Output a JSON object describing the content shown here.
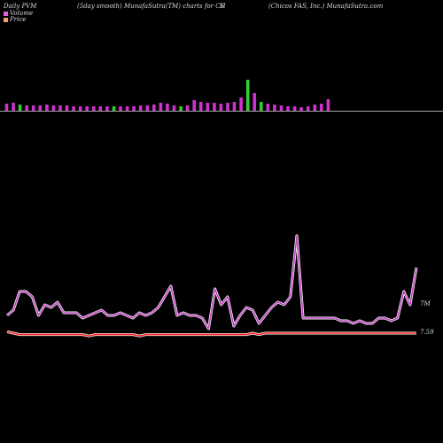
{
  "header": {
    "left": "Daily PVM",
    "center": "(5day smooth) MunafaSutra(TM) charts for CH",
    "symbol_suffix": "S",
    "right": "(Chicos FAS, Inc.) MunafaSutra.com"
  },
  "legend": [
    {
      "label": "Volume",
      "color": "#e060e0"
    },
    {
      "label": "Price",
      "color": "#f0a070"
    }
  ],
  "colors": {
    "background": "#000000",
    "volume_up": "#cc33cc",
    "volume_down": "#33cc33",
    "baseline": "#a0a0a0",
    "volume_line": "#c040c0",
    "volume_line_glow": "#ffffff",
    "price_line": "#ff2020",
    "price_line_glow": "#ffffff"
  },
  "chart_data": {
    "type": "line",
    "title": "Daily PVM",
    "end_labels": {
      "volume": "7M",
      "price": "7.59"
    },
    "volume_bars": {
      "heights": [
        8,
        9,
        7,
        6,
        6,
        6,
        7,
        6,
        6,
        6,
        5,
        5,
        5,
        5,
        5,
        5,
        5,
        5,
        5,
        5,
        6,
        6,
        7,
        9,
        8,
        6,
        5,
        6,
        12,
        10,
        9,
        9,
        8,
        9,
        10,
        15,
        35,
        20,
        10,
        8,
        7,
        6,
        5,
        5,
        4,
        5,
        7,
        8,
        13
      ],
      "down_flags": [
        0,
        0,
        1,
        0,
        0,
        0,
        0,
        0,
        0,
        0,
        0,
        0,
        0,
        0,
        0,
        0,
        1,
        0,
        0,
        0,
        0,
        0,
        0,
        0,
        0,
        0,
        1,
        0,
        0,
        0,
        0,
        0,
        0,
        0,
        0,
        0,
        1,
        0,
        1,
        0,
        0,
        0,
        0,
        0,
        0,
        0,
        0,
        0,
        0
      ]
    },
    "volume_line": [
      32,
      30,
      23,
      23,
      25,
      32,
      28,
      29,
      27,
      31,
      31,
      31,
      33,
      32,
      31,
      30,
      32,
      32,
      31,
      32,
      33,
      31,
      32,
      31,
      29,
      25,
      21,
      32,
      31,
      32,
      32,
      33,
      37,
      22,
      28,
      25,
      36,
      32,
      29,
      30,
      35,
      32,
      29,
      27,
      28,
      25,
      2,
      33,
      33,
      33,
      33,
      33,
      33,
      34,
      34,
      35,
      34,
      35,
      35,
      33,
      33,
      34,
      33,
      23,
      28,
      14
    ],
    "price_line": [
      6,
      5,
      4,
      4,
      4,
      4,
      4,
      4,
      4,
      4,
      4,
      4,
      4,
      3,
      4,
      4,
      4,
      4,
      4,
      4,
      4,
      3,
      4,
      4,
      4,
      4,
      4,
      4,
      4,
      4,
      4,
      4,
      4,
      4,
      4,
      4,
      4,
      4,
      4,
      5,
      4,
      5,
      5,
      5,
      5,
      5,
      5,
      5,
      5,
      5,
      5,
      5,
      5,
      5,
      5,
      5,
      5,
      5,
      5,
      5,
      5,
      5,
      5,
      5,
      5,
      5
    ]
  }
}
